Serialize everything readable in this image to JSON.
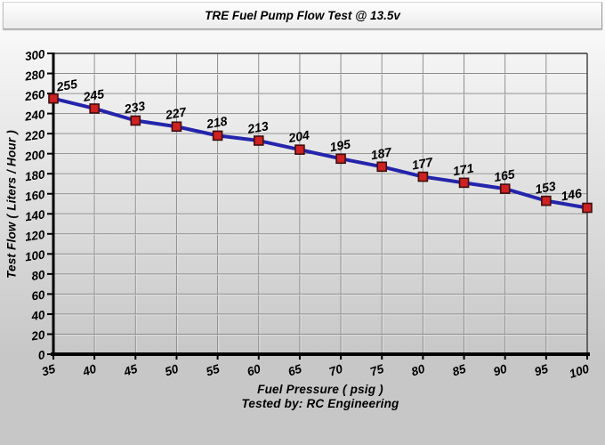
{
  "title_bar": {
    "title": "TRE Fuel Pump Flow Test @ 13.5v"
  },
  "chart_data": {
    "type": "line",
    "title": "TRE Fuel Pump Flow Test @ 13.5v",
    "xlabel": "Fuel Pressure ( psig )",
    "ylabel": "Test Flow ( Liters / Hour )",
    "footer": "Tested by: RC Engineering",
    "x": [
      35,
      40,
      45,
      50,
      55,
      60,
      65,
      70,
      75,
      80,
      85,
      90,
      95,
      100
    ],
    "series": [
      {
        "name": "Test Flow",
        "values": [
          255,
          245,
          233,
          227,
          218,
          213,
          204,
          195,
          187,
          177,
          171,
          165,
          153,
          146
        ]
      }
    ],
    "point_labels_visible": true,
    "xlim": [
      35,
      100
    ],
    "ylim": [
      0,
      300
    ],
    "x_ticks": [
      35,
      40,
      45,
      50,
      55,
      60,
      65,
      70,
      75,
      80,
      85,
      90,
      95,
      100
    ],
    "y_ticks": [
      0,
      20,
      40,
      60,
      80,
      100,
      120,
      140,
      160,
      180,
      200,
      220,
      240,
      260,
      280,
      300
    ],
    "grid": true,
    "legend_position": "none",
    "colors": {
      "line": "#2424ac",
      "marker_fill": "#ce2121",
      "marker_stroke": "#3f0e0e",
      "grid": "#8c8c8c",
      "grid_highlight": "#efefef",
      "plot_border": "#3a3a3a",
      "axis": "#000000",
      "text": "#000000",
      "background_top": "#fbfbfb",
      "background_bottom": "#c7c7c7"
    }
  }
}
